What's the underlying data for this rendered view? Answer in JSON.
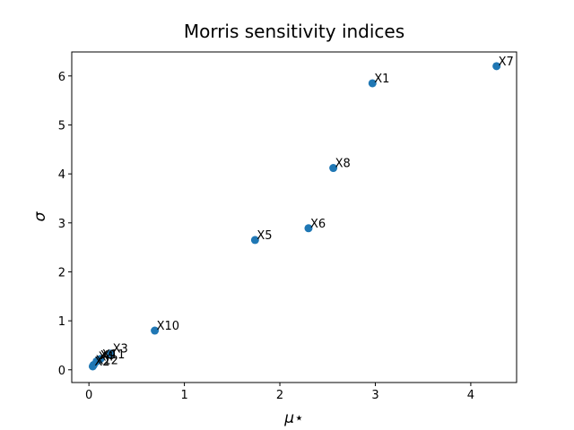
{
  "chart_data": {
    "type": "scatter",
    "title": "Morris sensitivity indices",
    "x_label": "μ⋆",
    "y_label": "σ",
    "labels": [
      "X7",
      "X1",
      "X8",
      "X6",
      "X5",
      "X10",
      "X3",
      "X11",
      "X9",
      "X4",
      "X12",
      "X2"
    ],
    "x": [
      4.27,
      2.97,
      2.56,
      2.3,
      1.74,
      0.69,
      0.23,
      0.12,
      0.1,
      0.08,
      0.05,
      0.04
    ],
    "values": [
      6.2,
      5.85,
      4.12,
      2.89,
      2.65,
      0.8,
      0.33,
      0.22,
      0.2,
      0.17,
      0.1,
      0.07
    ],
    "color": "#1f77b4",
    "xlim": [
      -0.18,
      4.48
    ],
    "ylim": [
      -0.26,
      6.49
    ],
    "xticks": [
      0,
      1,
      2,
      3,
      4
    ],
    "yticks": [
      0,
      1,
      2,
      3,
      4,
      5,
      6
    ]
  }
}
